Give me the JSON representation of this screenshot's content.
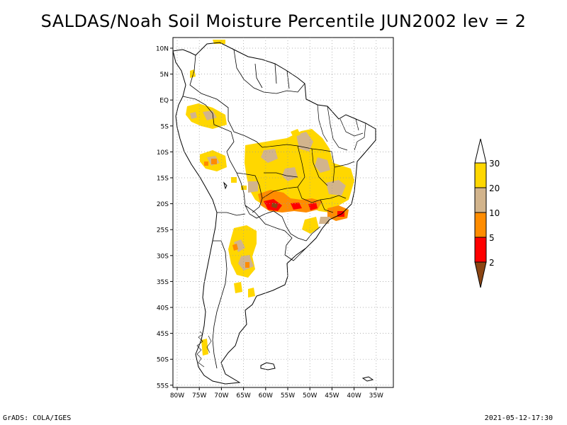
{
  "title": "SALDAS/Noah Soil Moisture Percentile JUN2002 lev = 2",
  "footer": {
    "left": "GrADS: COLA/IGES",
    "right": "2021-05-12-17:30"
  },
  "map": {
    "region": "South America",
    "lat_labels": [
      "10N",
      "5N",
      "EQ",
      "5S",
      "10S",
      "15S",
      "20S",
      "25S",
      "30S",
      "35S",
      "40S",
      "45S",
      "50S",
      "55S"
    ],
    "lon_labels": [
      "80W",
      "75W",
      "70W",
      "65W",
      "60W",
      "55W",
      "50W",
      "45W",
      "40W",
      "35W"
    ],
    "gridlines": "dotted",
    "shaded_areas": [
      {
        "name": "central Brazil",
        "category": "20-30"
      },
      {
        "name": "Mato Grosso do Sul",
        "category": "5-20"
      },
      {
        "name": "southeast Brazil coast",
        "category": "5-20"
      },
      {
        "name": "Peru",
        "category": "10-30"
      },
      {
        "name": "northern Argentina",
        "category": "10-30"
      },
      {
        "name": "southern Chile",
        "category": "20-30"
      }
    ]
  },
  "colorbar": {
    "labels": [
      "30",
      "20",
      "10",
      "5",
      "2"
    ],
    "colors": {
      "above_30": "#ffffff",
      "20_30": "#ffd700",
      "10_20": "#d2b48c",
      "5_10": "#ff8c00",
      "2_5": "#ff0000",
      "below_2": "#8b4513"
    }
  }
}
